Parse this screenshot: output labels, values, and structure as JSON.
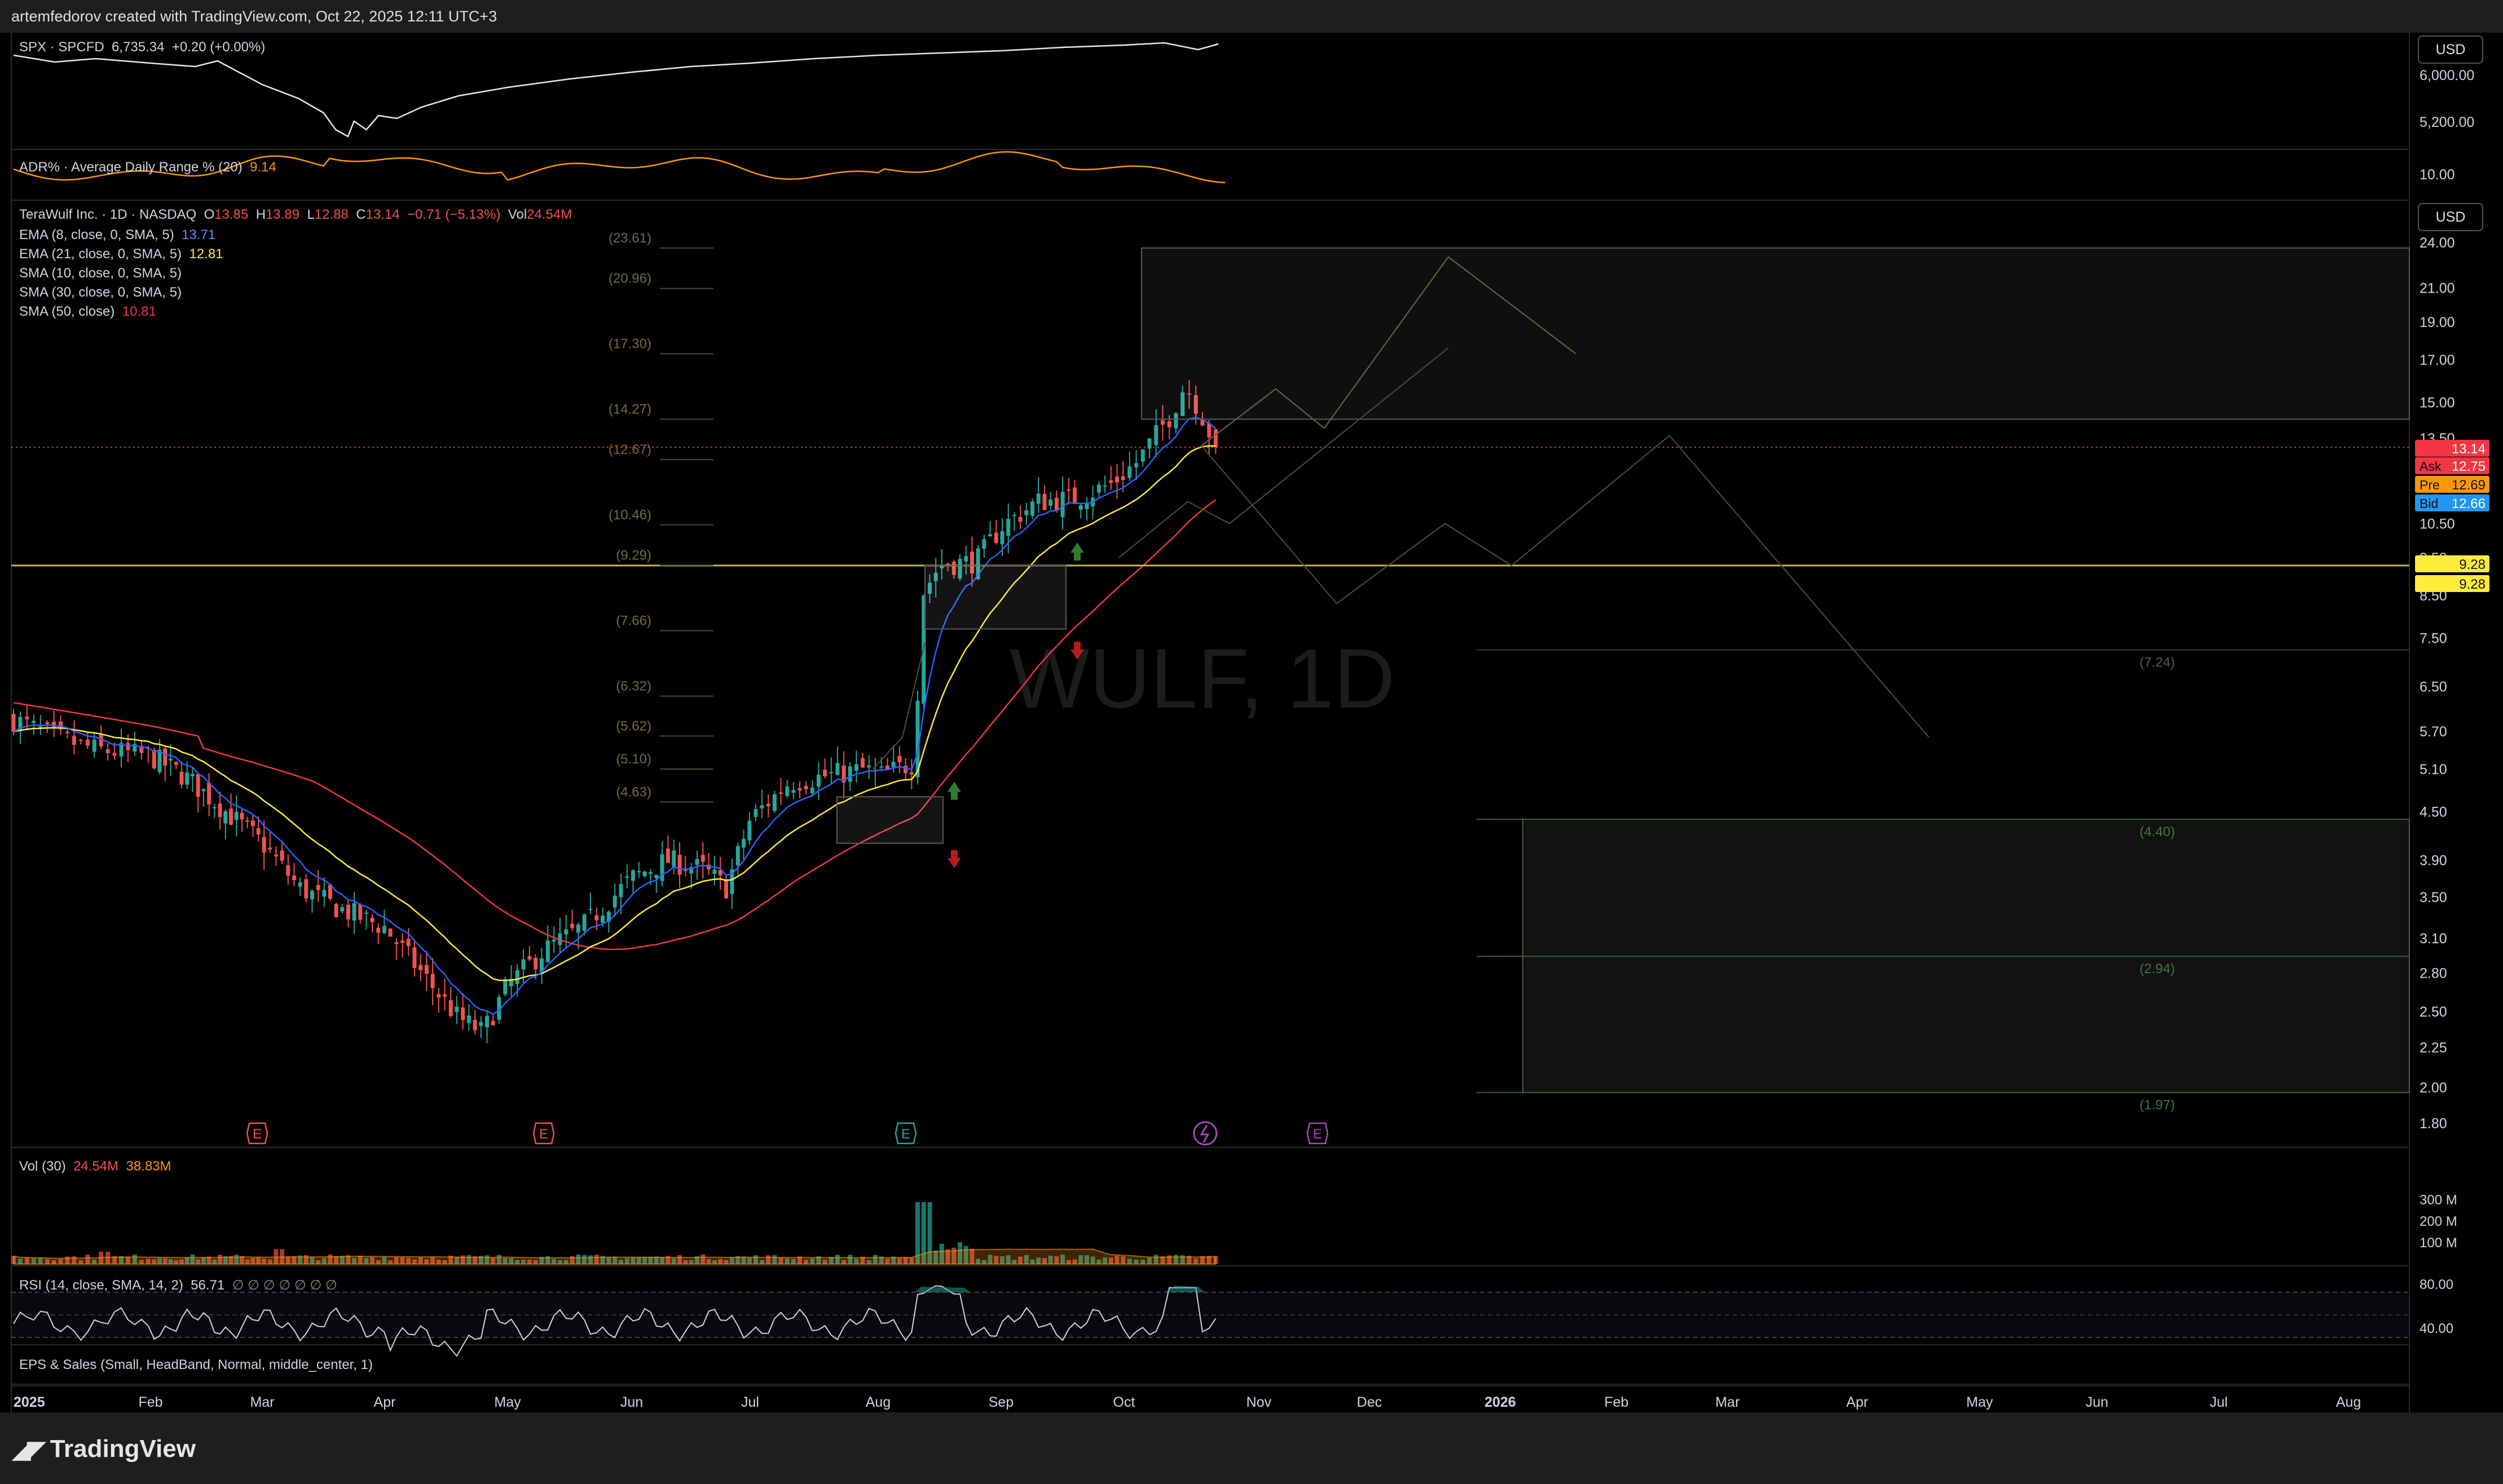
{
  "header": {
    "credit": "artemfedorov created with TradingView.com, Oct 22, 2025 12:11 UTC+3"
  },
  "footer": {
    "brand": "TradingView"
  },
  "panes": {
    "spx": {
      "legend_prefix": "SPX · SPCFD",
      "legend_value": "6,735.34",
      "legend_change": "+0.20 (+0.00%)",
      "currency": "USD",
      "ticks": [
        "6,000.00",
        "5,200.00"
      ]
    },
    "adr": {
      "legend_label": "ADR% · Average Daily Range % (20)",
      "legend_value": "9.14",
      "ticks": [
        "10.00"
      ]
    },
    "main": {
      "currency": "USD",
      "title": "TeraWulf Inc. · 1D · NASDAQ",
      "ohlc": {
        "o_label": "O",
        "o": "13.85",
        "h_label": "H",
        "h": "13.89",
        "l_label": "L",
        "l": "12.88",
        "c_label": "C",
        "c": "13.14",
        "chg": "−0.71 (−5.13%)",
        "vol_label": "Vol",
        "vol": "24.54M"
      },
      "indicators": [
        {
          "label": "EMA (8, close, 0, SMA, 5)",
          "value": "13.71",
          "color": "#2962ff"
        },
        {
          "label": "EMA (21, close, 0, SMA, 5)",
          "value": "12.81",
          "color": "#ffeb3b"
        },
        {
          "label": "SMA (10, close, 0, SMA, 5)",
          "value": "",
          "color": "#d1d4dc"
        },
        {
          "label": "SMA (30, close, 0, SMA, 5)",
          "value": "",
          "color": "#d1d4dc"
        },
        {
          "label": "SMA (50, close)",
          "value": "10.81",
          "color": "#f23645"
        }
      ],
      "watermark": "WULF, 1D",
      "price_ticks": [
        "24.00",
        "21.00",
        "19.00",
        "17.00",
        "15.00",
        "13.50",
        "10.50",
        "9.50",
        "8.50",
        "7.50",
        "6.50",
        "5.70",
        "5.10",
        "4.50",
        "3.90",
        "3.50",
        "3.10",
        "2.80",
        "2.50",
        "2.25",
        "2.00",
        "1.80"
      ],
      "price_tags": [
        {
          "label": "",
          "value": "13.14",
          "color": "#f23645"
        },
        {
          "label": "Ask",
          "value": "12.75",
          "color": "#f23645"
        },
        {
          "label": "Pre",
          "value": "12.69",
          "color": "#ff9800"
        },
        {
          "label": "Bid",
          "value": "12.66",
          "color": "#2196f3"
        },
        {
          "label": "",
          "value": "9.28",
          "color": "#ffeb3b"
        },
        {
          "label": "",
          "value": "9.28",
          "color": "#ffeb3b"
        }
      ],
      "fib_labels": [
        "(23.61)",
        "(20.96)",
        "(17.30)",
        "(14.27)",
        "(12.67)",
        "(10.46)",
        "(9.29)",
        "(7.66)",
        "(6.32)",
        "(5.62)",
        "(5.10)",
        "(4.63)"
      ],
      "target_labels": [
        "(7.24)",
        "(4.40)",
        "(2.94)",
        "(1.97)"
      ],
      "earnings_markers": [
        "E",
        "E",
        "E",
        "E"
      ]
    },
    "volume": {
      "legend_label": "Vol (30)",
      "v1": "24.54M",
      "v2": "38.83M",
      "ticks": [
        "300 M",
        "200 M",
        "100 M"
      ]
    },
    "rsi": {
      "legend_label": "RSI (14, close, SMA, 14, 2)",
      "value": "56.71",
      "extra": "∅ ∅ ∅ ∅ ∅ ∅ ∅",
      "ticks": [
        "80.00",
        "40.00"
      ]
    },
    "eps": {
      "legend_label": "EPS & Sales (Small, HeadBand, Normal, middle_center, 1)"
    }
  },
  "time_axis": {
    "labels": [
      "2025",
      "Feb",
      "Mar",
      "Apr",
      "May",
      "Jun",
      "Jul",
      "Aug",
      "Sep",
      "Oct",
      "Nov",
      "Dec",
      "2026",
      "Feb",
      "Mar",
      "Apr",
      "May",
      "Jun",
      "Jul",
      "Aug"
    ]
  },
  "colors": {
    "up": "#26a69a",
    "down": "#ef5350",
    "ema8": "#2962ff",
    "ema21": "#ffeb3b",
    "sma50": "#f23645",
    "level": "#c8b44a",
    "adr": "#ff9800"
  },
  "chart_data": {
    "type": "candlestick",
    "symbol": "WULF",
    "interval": "1D",
    "y_scale": "log",
    "ylim": [
      1.8,
      24
    ],
    "months": [
      "2025",
      "Feb",
      "Mar",
      "Apr",
      "May",
      "Jun",
      "Jul",
      "Aug",
      "Sep",
      "Oct"
    ],
    "close_path": [
      [
        "2025",
        5.9
      ],
      [
        "Jan-mid",
        5.6
      ],
      [
        "Feb",
        5.3
      ],
      [
        "Feb-mid",
        4.8
      ],
      [
        "Mar",
        4.1
      ],
      [
        "Mar-mid",
        3.6
      ],
      [
        "Apr",
        3.2
      ],
      [
        "Apr-mid",
        2.5
      ],
      [
        "Apr-late",
        2.3
      ],
      [
        "May",
        2.7
      ],
      [
        "May-mid",
        3.2
      ],
      [
        "Jun",
        3.7
      ],
      [
        "Jun-mid",
        3.9
      ],
      [
        "Jul",
        4.4
      ],
      [
        "Jul-mid",
        4.8
      ],
      [
        "Aug",
        5.1
      ],
      [
        "Aug-mid",
        9.2
      ],
      [
        "Sep",
        9.6
      ],
      [
        "Sep-mid",
        11.0
      ],
      [
        "Oct",
        12.3
      ],
      [
        "Oct-mid",
        15.2
      ],
      [
        "Oct-22",
        13.14
      ]
    ],
    "resistance_level": 9.28,
    "resistance_zone": [
      14.27,
      23.61
    ],
    "target_zone": [
      1.97,
      4.4
    ],
    "volume_peak": "300 M",
    "rsi_band": [
      40,
      80
    ]
  }
}
